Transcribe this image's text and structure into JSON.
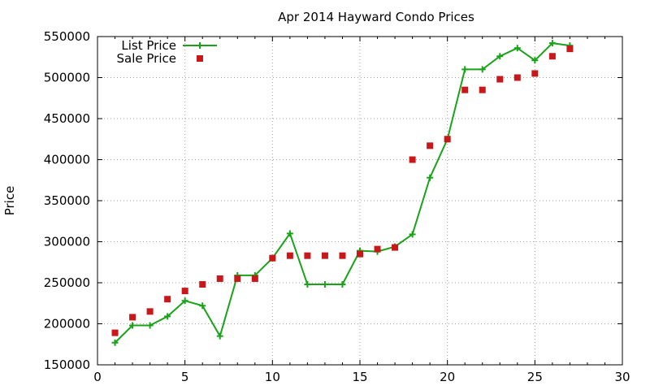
{
  "chart_data": {
    "type": "line",
    "title": "Apr 2014 Hayward Condo Prices",
    "xlabel": "",
    "ylabel": "Price",
    "xlim": [
      0,
      30
    ],
    "ylim": [
      150000,
      550000
    ],
    "x_ticks": [
      0,
      5,
      10,
      15,
      20,
      25,
      30
    ],
    "y_ticks": [
      150000,
      200000,
      250000,
      300000,
      350000,
      400000,
      450000,
      500000,
      550000
    ],
    "grid": true,
    "legend_position": "top-left",
    "series": [
      {
        "name": "List Price",
        "style": "line+cross",
        "color": "#19a319",
        "x": [
          1,
          2,
          3,
          4,
          5,
          6,
          7,
          8,
          9,
          10,
          11,
          12,
          13,
          14,
          15,
          16,
          17,
          18,
          19,
          20,
          21,
          22,
          23,
          24,
          25,
          26,
          27
        ],
        "values": [
          177000,
          198000,
          198000,
          209000,
          228000,
          222000,
          185000,
          259000,
          259000,
          280000,
          310000,
          248000,
          248000,
          248000,
          289000,
          288000,
          294000,
          309000,
          378000,
          425000,
          510000,
          510000,
          526000,
          536000,
          521000,
          542000,
          539000
        ]
      },
      {
        "name": "Sale Price",
        "style": "square",
        "color": "#c8181a",
        "x": [
          1,
          2,
          3,
          4,
          5,
          6,
          7,
          8,
          9,
          10,
          11,
          12,
          13,
          14,
          15,
          16,
          17,
          18,
          19,
          20,
          21,
          22,
          23,
          24,
          25,
          26,
          27
        ],
        "values": [
          189000,
          208000,
          215000,
          230000,
          240000,
          248000,
          255000,
          255000,
          255000,
          280000,
          283000,
          283000,
          283000,
          283000,
          285000,
          291000,
          293000,
          400000,
          417000,
          425000,
          485000,
          485000,
          498000,
          500000,
          505000,
          526000,
          535000
        ]
      }
    ]
  }
}
